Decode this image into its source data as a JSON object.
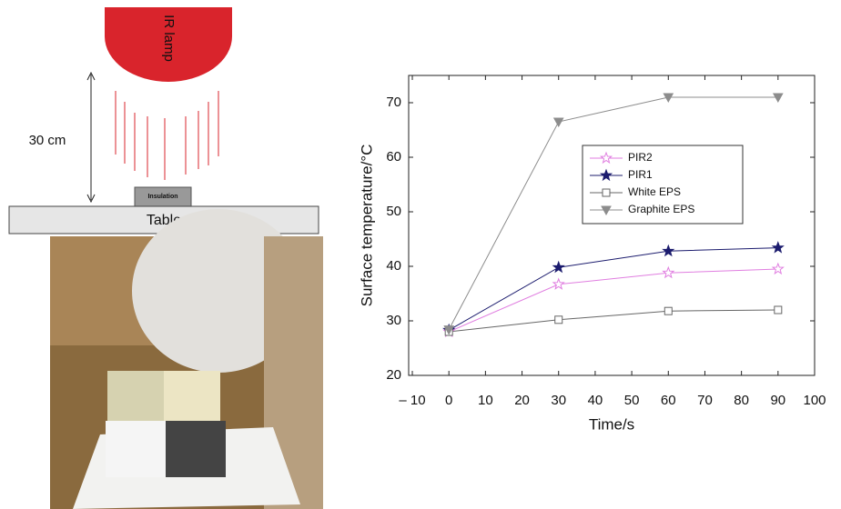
{
  "diagram": {
    "lamp": "IR lamp",
    "distance": "30 cm",
    "sample": "Insulation",
    "table": "Table"
  },
  "chart_data": {
    "type": "line",
    "xlabel": "Time/s",
    "ylabel": "Surface temperature/°C",
    "x": [
      0,
      30,
      60,
      90
    ],
    "series": [
      {
        "name": "PIR2",
        "color": "#e07ee0",
        "marker": "open-star",
        "values": [
          28,
          36.7,
          38.8,
          39.5
        ]
      },
      {
        "name": "PIR1",
        "color": "#1c1c6e",
        "marker": "star",
        "values": [
          28.3,
          39.8,
          42.8,
          43.4
        ]
      },
      {
        "name": "White EPS",
        "color": "#666666",
        "marker": "open-square",
        "values": [
          28,
          30.2,
          31.8,
          32
        ]
      },
      {
        "name": "Graphite EPS",
        "color": "#8c8c8c",
        "marker": "triangle-down",
        "values": [
          28.4,
          66.5,
          71,
          71
        ]
      }
    ],
    "xlim": [
      -11,
      100
    ],
    "ylim": [
      20,
      75
    ],
    "xticks": [
      {
        "value": -10,
        "label": "– 10"
      },
      0,
      10,
      20,
      30,
      40,
      50,
      60,
      70,
      80,
      90,
      100
    ],
    "yticks": [
      20,
      30,
      40,
      50,
      60,
      70
    ],
    "grid": false
  }
}
